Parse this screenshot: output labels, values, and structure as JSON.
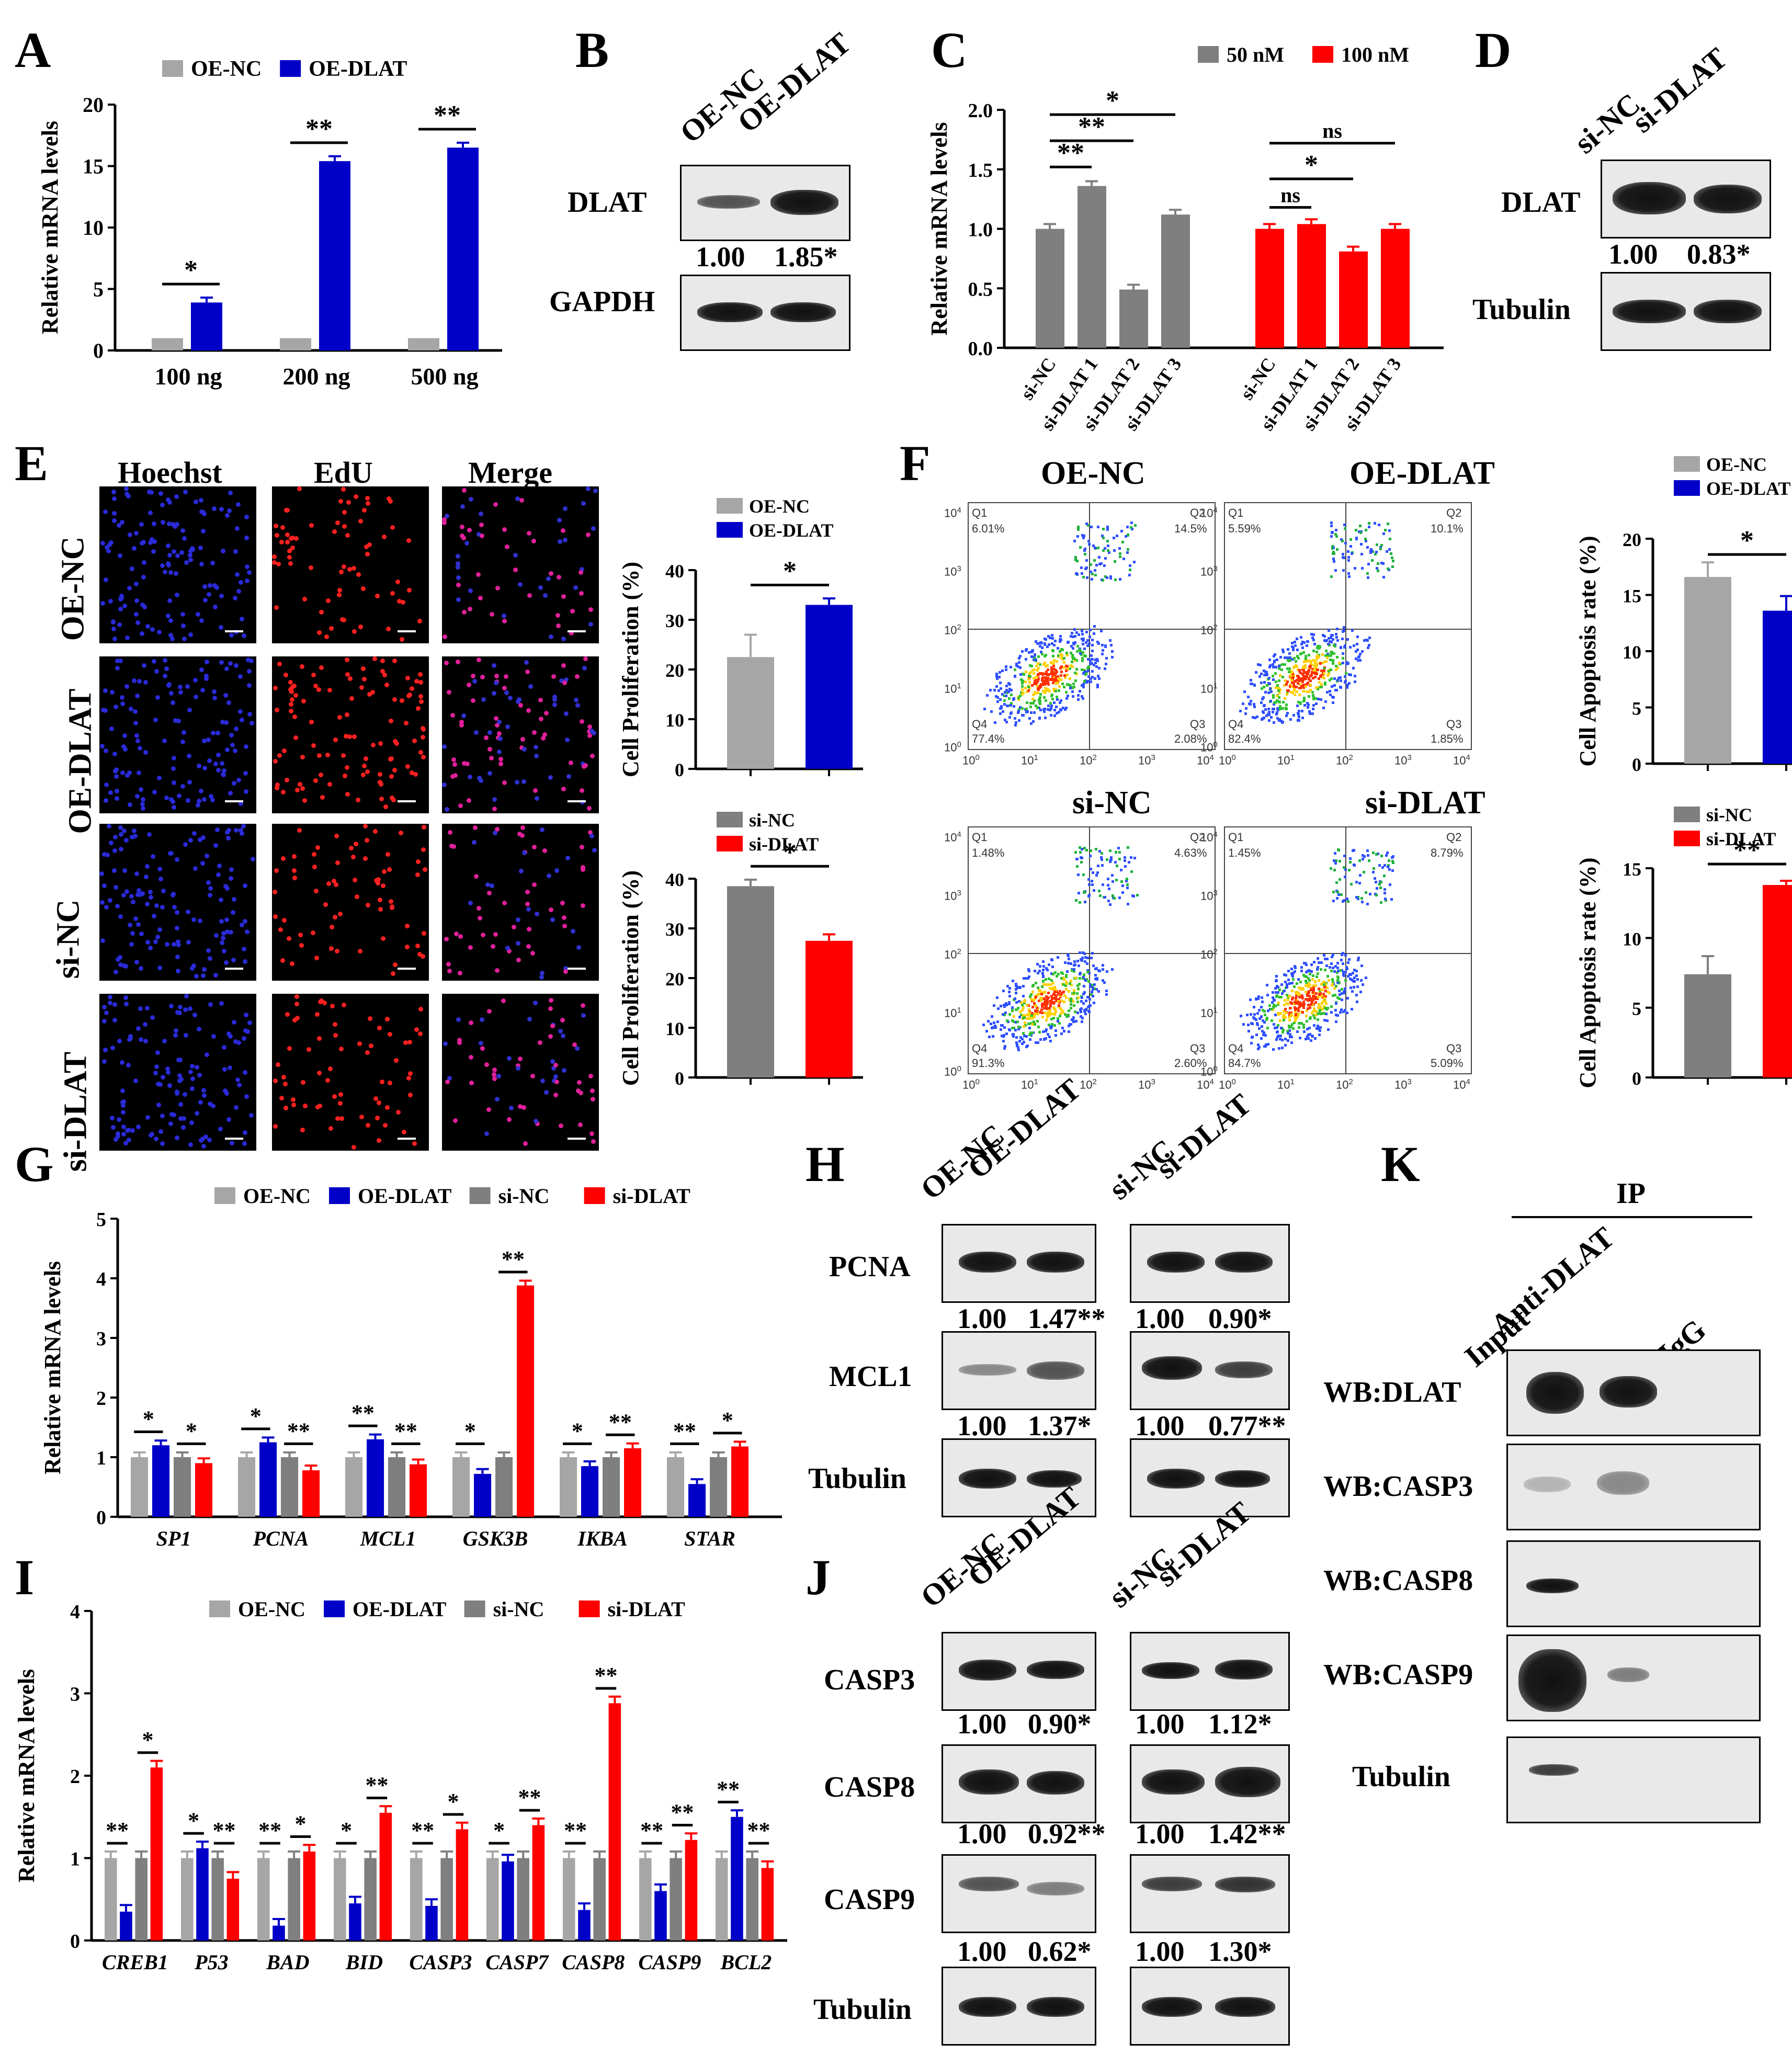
{
  "panels": {
    "A": "A",
    "B": "B",
    "C": "C",
    "D": "D",
    "E": "E",
    "F": "F",
    "G": "G",
    "H": "H",
    "I": "I",
    "J": "J",
    "K": "K"
  },
  "colors": {
    "gray": "#a6a6a6",
    "darkgray": "#7f7f7f",
    "blue": "#0000c8",
    "red": "#ff0000"
  },
  "chart_data": [
    {
      "id": "A",
      "type": "bar",
      "ylabel": "Relative mRNA levels",
      "ylim": [
        0,
        20
      ],
      "yticks": [
        "0",
        "5",
        "10",
        "15",
        "20"
      ],
      "categories": [
        "100 ng",
        "200 ng",
        "500 ng"
      ],
      "series": [
        {
          "name": "OE-NC",
          "values": [
            1,
            1,
            1
          ]
        },
        {
          "name": "OE-DLAT",
          "values": [
            3.9,
            15.4,
            16.5
          ]
        }
      ],
      "sig": [
        "*",
        "**",
        "**"
      ]
    },
    {
      "id": "C",
      "type": "bar",
      "ylabel": "Relative mRNA levels",
      "ylim": [
        0,
        2.0
      ],
      "yticks": [
        "0.0",
        "0.5",
        "1.0",
        "1.5",
        "2.0"
      ],
      "categories": [
        "si-NC",
        "si-DLAT 1",
        "si-DLAT 2",
        "si-DLAT 3"
      ],
      "series": [
        {
          "name": "50 nM",
          "values": [
            1.0,
            1.36,
            0.49,
            1.12
          ]
        },
        {
          "name": "100 nM",
          "values": [
            1.0,
            1.04,
            0.81,
            1.0
          ]
        }
      ],
      "sig50": [
        "**",
        "**",
        "*"
      ],
      "sig100": [
        "ns",
        "*",
        "ns"
      ]
    },
    {
      "id": "E1",
      "type": "bar",
      "ylabel": "Cell Proliferation (%)",
      "ylim": [
        0,
        40
      ],
      "yticks": [
        "0",
        "10",
        "20",
        "30",
        "40"
      ],
      "categories": [
        "OE-NC",
        "OE-DLAT"
      ],
      "values": [
        22.5,
        33
      ],
      "sig": "*"
    },
    {
      "id": "E2",
      "type": "bar",
      "ylabel": "Cell Proliferation (%)",
      "ylim": [
        0,
        40
      ],
      "yticks": [
        "0",
        "10",
        "20",
        "30",
        "40"
      ],
      "categories": [
        "si-NC",
        "si-DLAT"
      ],
      "values": [
        38.5,
        27.5
      ],
      "sig": "*"
    },
    {
      "id": "F1",
      "type": "bar",
      "ylabel": "Cell Apoptosis rate (%)",
      "ylim": [
        0,
        20
      ],
      "yticks": [
        "0",
        "5",
        "10",
        "15",
        "20"
      ],
      "categories": [
        "OE-NC",
        "OE-DLAT"
      ],
      "values": [
        16.6,
        13.6
      ],
      "sig": "*"
    },
    {
      "id": "F2",
      "type": "bar",
      "ylabel": "Cell Apoptosis rate (%)",
      "ylim": [
        0,
        15
      ],
      "yticks": [
        "0",
        "5",
        "10",
        "15"
      ],
      "categories": [
        "si-NC",
        "si-DLAT"
      ],
      "values": [
        7.4,
        13.8
      ],
      "sig": "**"
    },
    {
      "id": "G",
      "type": "bar",
      "ylabel": "Relative mRNA levels",
      "ylim": [
        0,
        5
      ],
      "yticks": [
        "0",
        "1",
        "2",
        "3",
        "4",
        "5"
      ],
      "categories": [
        "SP1",
        "PCNA",
        "MCL1",
        "GSK3B",
        "IKBA",
        "STAR"
      ],
      "series": [
        {
          "name": "OE-NC",
          "values": [
            1,
            1,
            1,
            1,
            1,
            1
          ]
        },
        {
          "name": "OE-DLAT",
          "values": [
            1.2,
            1.25,
            1.3,
            0.72,
            0.85,
            0.55
          ]
        },
        {
          "name": "si-NC",
          "values": [
            1,
            1,
            1,
            1,
            1,
            1
          ]
        },
        {
          "name": "si-DLAT",
          "values": [
            0.9,
            0.78,
            0.88,
            3.88,
            1.15,
            1.18
          ]
        }
      ],
      "sigA": [
        "*",
        "*",
        "**",
        "*",
        "*",
        "**"
      ],
      "sigB": [
        "*",
        "**",
        "**",
        "**",
        "**",
        "*"
      ]
    },
    {
      "id": "I",
      "type": "bar",
      "ylabel": "Relative mRNA levels",
      "ylim": [
        0,
        4
      ],
      "yticks": [
        "0",
        "1",
        "2",
        "3",
        "4"
      ],
      "categories": [
        "CREB1",
        "P53",
        "BAD",
        "BID",
        "CASP3",
        "CASP7",
        "CASP8",
        "CASP9",
        "BCL2"
      ],
      "series": [
        {
          "name": "OE-NC",
          "values": [
            1,
            1,
            1,
            1,
            1,
            1,
            1,
            1,
            1
          ]
        },
        {
          "name": "OE-DLAT",
          "values": [
            0.35,
            1.12,
            0.18,
            0.45,
            0.42,
            0.96,
            0.37,
            0.6,
            1.5
          ]
        },
        {
          "name": "si-NC",
          "values": [
            1,
            1,
            1,
            1,
            1,
            1,
            1,
            1,
            1
          ]
        },
        {
          "name": "si-DLAT",
          "values": [
            2.1,
            0.75,
            1.08,
            1.55,
            1.35,
            1.4,
            2.88,
            1.22,
            0.88
          ]
        }
      ],
      "sigA": [
        "**",
        "*",
        "**",
        "*",
        "**",
        "*",
        "**",
        "**",
        "**"
      ],
      "sigB": [
        "*",
        "**",
        "*",
        "**",
        "*",
        "**",
        "**",
        "**",
        "**"
      ]
    }
  ],
  "B": {
    "lanes": [
      "OE-NC",
      "OE-DLAT"
    ],
    "rows": [
      "DLAT",
      "GAPDH"
    ],
    "quant": [
      "1.00",
      "1.85*"
    ]
  },
  "D": {
    "lanes": [
      "si-NC",
      "si-DLAT"
    ],
    "rows": [
      "DLAT",
      "Tubulin"
    ],
    "quant": [
      "1.00",
      "0.83*"
    ]
  },
  "E": {
    "cols": [
      "Hoechst",
      "EdU",
      "Merge"
    ],
    "rows": [
      "OE-NC",
      "OE-DLAT",
      "si-NC",
      "si-DLAT"
    ]
  },
  "F": {
    "titles": [
      "OE-NC",
      "OE-DLAT",
      "si-NC",
      "si-DLAT"
    ],
    "quads": [
      [
        "6.01%",
        "14.5%",
        "77.4%",
        "2.08%"
      ],
      [
        "5.59%",
        "10.1%",
        "82.4%",
        "1.85%"
      ],
      [
        "1.48%",
        "4.63%",
        "91.3%",
        "2.60%"
      ],
      [
        "1.45%",
        "8.79%",
        "84.7%",
        "5.09%"
      ]
    ],
    "qlabels": [
      "Q1",
      "Q2",
      "Q4",
      "Q3"
    ],
    "ticks": [
      "10",
      "0",
      "1",
      "2",
      "3",
      "4"
    ]
  },
  "H": {
    "lanes": [
      "OE-NC",
      "OE-DLAT",
      "si-NC",
      "si-DLAT"
    ],
    "rows": [
      "PCNA",
      "MCL1",
      "Tubulin"
    ],
    "quant": [
      [
        "1.00",
        "1.47**",
        "1.00",
        "0.90*"
      ],
      [
        "1.00",
        "1.37*",
        "1.00",
        "0.77**"
      ]
    ]
  },
  "J": {
    "lanes": [
      "OE-NC",
      "OE-DLAT",
      "si-NC",
      "si-DLAT"
    ],
    "rows": [
      "CASP3",
      "CASP8",
      "CASP9",
      "Tubulin"
    ],
    "quant": [
      [
        "1.00",
        "0.90*",
        "1.00",
        "1.12*"
      ],
      [
        "1.00",
        "0.92**",
        "1.00",
        "1.42**"
      ],
      [
        "1.00",
        "0.62*",
        "1.00",
        "1.30*"
      ]
    ]
  },
  "K": {
    "ip": "IP",
    "lanes": [
      "Input",
      "Anti-DLAT",
      "IgG"
    ],
    "rows": [
      "WB:DLAT",
      "WB:CASP3",
      "WB:CASP8",
      "WB:CASP9",
      "Tubulin"
    ]
  }
}
